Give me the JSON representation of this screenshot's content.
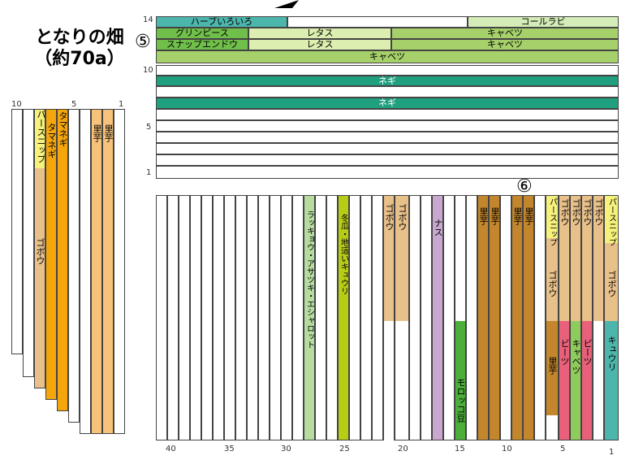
{
  "title_line1": "となりの畑",
  "title_line2": "（約70a）",
  "marker5": "⑤",
  "marker6": "⑥",
  "top_plot": {
    "scale": [
      "14",
      "10",
      "5",
      "1"
    ],
    "r1": {
      "herb": "ハーブいろいろ",
      "kohl": "コールラビ"
    },
    "r2": {
      "a": "グリンピース",
      "b": "レタス",
      "c": "キャベツ"
    },
    "r3": {
      "a": "スナップエンドウ",
      "b": "レタス",
      "c": "キャベツ"
    },
    "r4": "キャベツ",
    "negi1": "ネギ",
    "negi2": "ネギ"
  },
  "left_plot": {
    "scale": [
      "10",
      "5",
      "1"
    ],
    "parsnip": "パースニップ",
    "gobo": "ゴボウ",
    "onion1": "タマネギ",
    "onion2": "タマネギ",
    "taro1": "里芋",
    "taro2": "里芋"
  },
  "bottom_plot": {
    "scale": [
      "40",
      "35",
      "30",
      "25",
      "20",
      "15",
      "10",
      "5",
      "1"
    ],
    "rakkyo": "ラッキョウ・アサツキ・エシャロット",
    "togan": "冬瓜・地這いキュウリ",
    "gobo_a": "ゴボウ",
    "gobo_b": "ゴボウ",
    "nasu": "ナス",
    "morokko": "モロッコ豆",
    "taro_a": "里芋",
    "taro_b": "里芋",
    "taro_c": "里芋",
    "taro_d": "里芋",
    "parsnip_l": "パースニップ",
    "gobo_l": "ゴボウ",
    "taro_l": "里芋",
    "gobo_c1": "ゴボウ",
    "gobo_c2": "ゴボウ",
    "gobo_c3": "ゴボウ",
    "gobo_c4": "ゴボウ",
    "beets1": "ビーツ",
    "cabbage": "キャベツ",
    "beets2": "ビーツ",
    "parsnip_r": "パースニップ",
    "gobo_r": "ゴボウ",
    "cucumber": "キュウリ"
  }
}
